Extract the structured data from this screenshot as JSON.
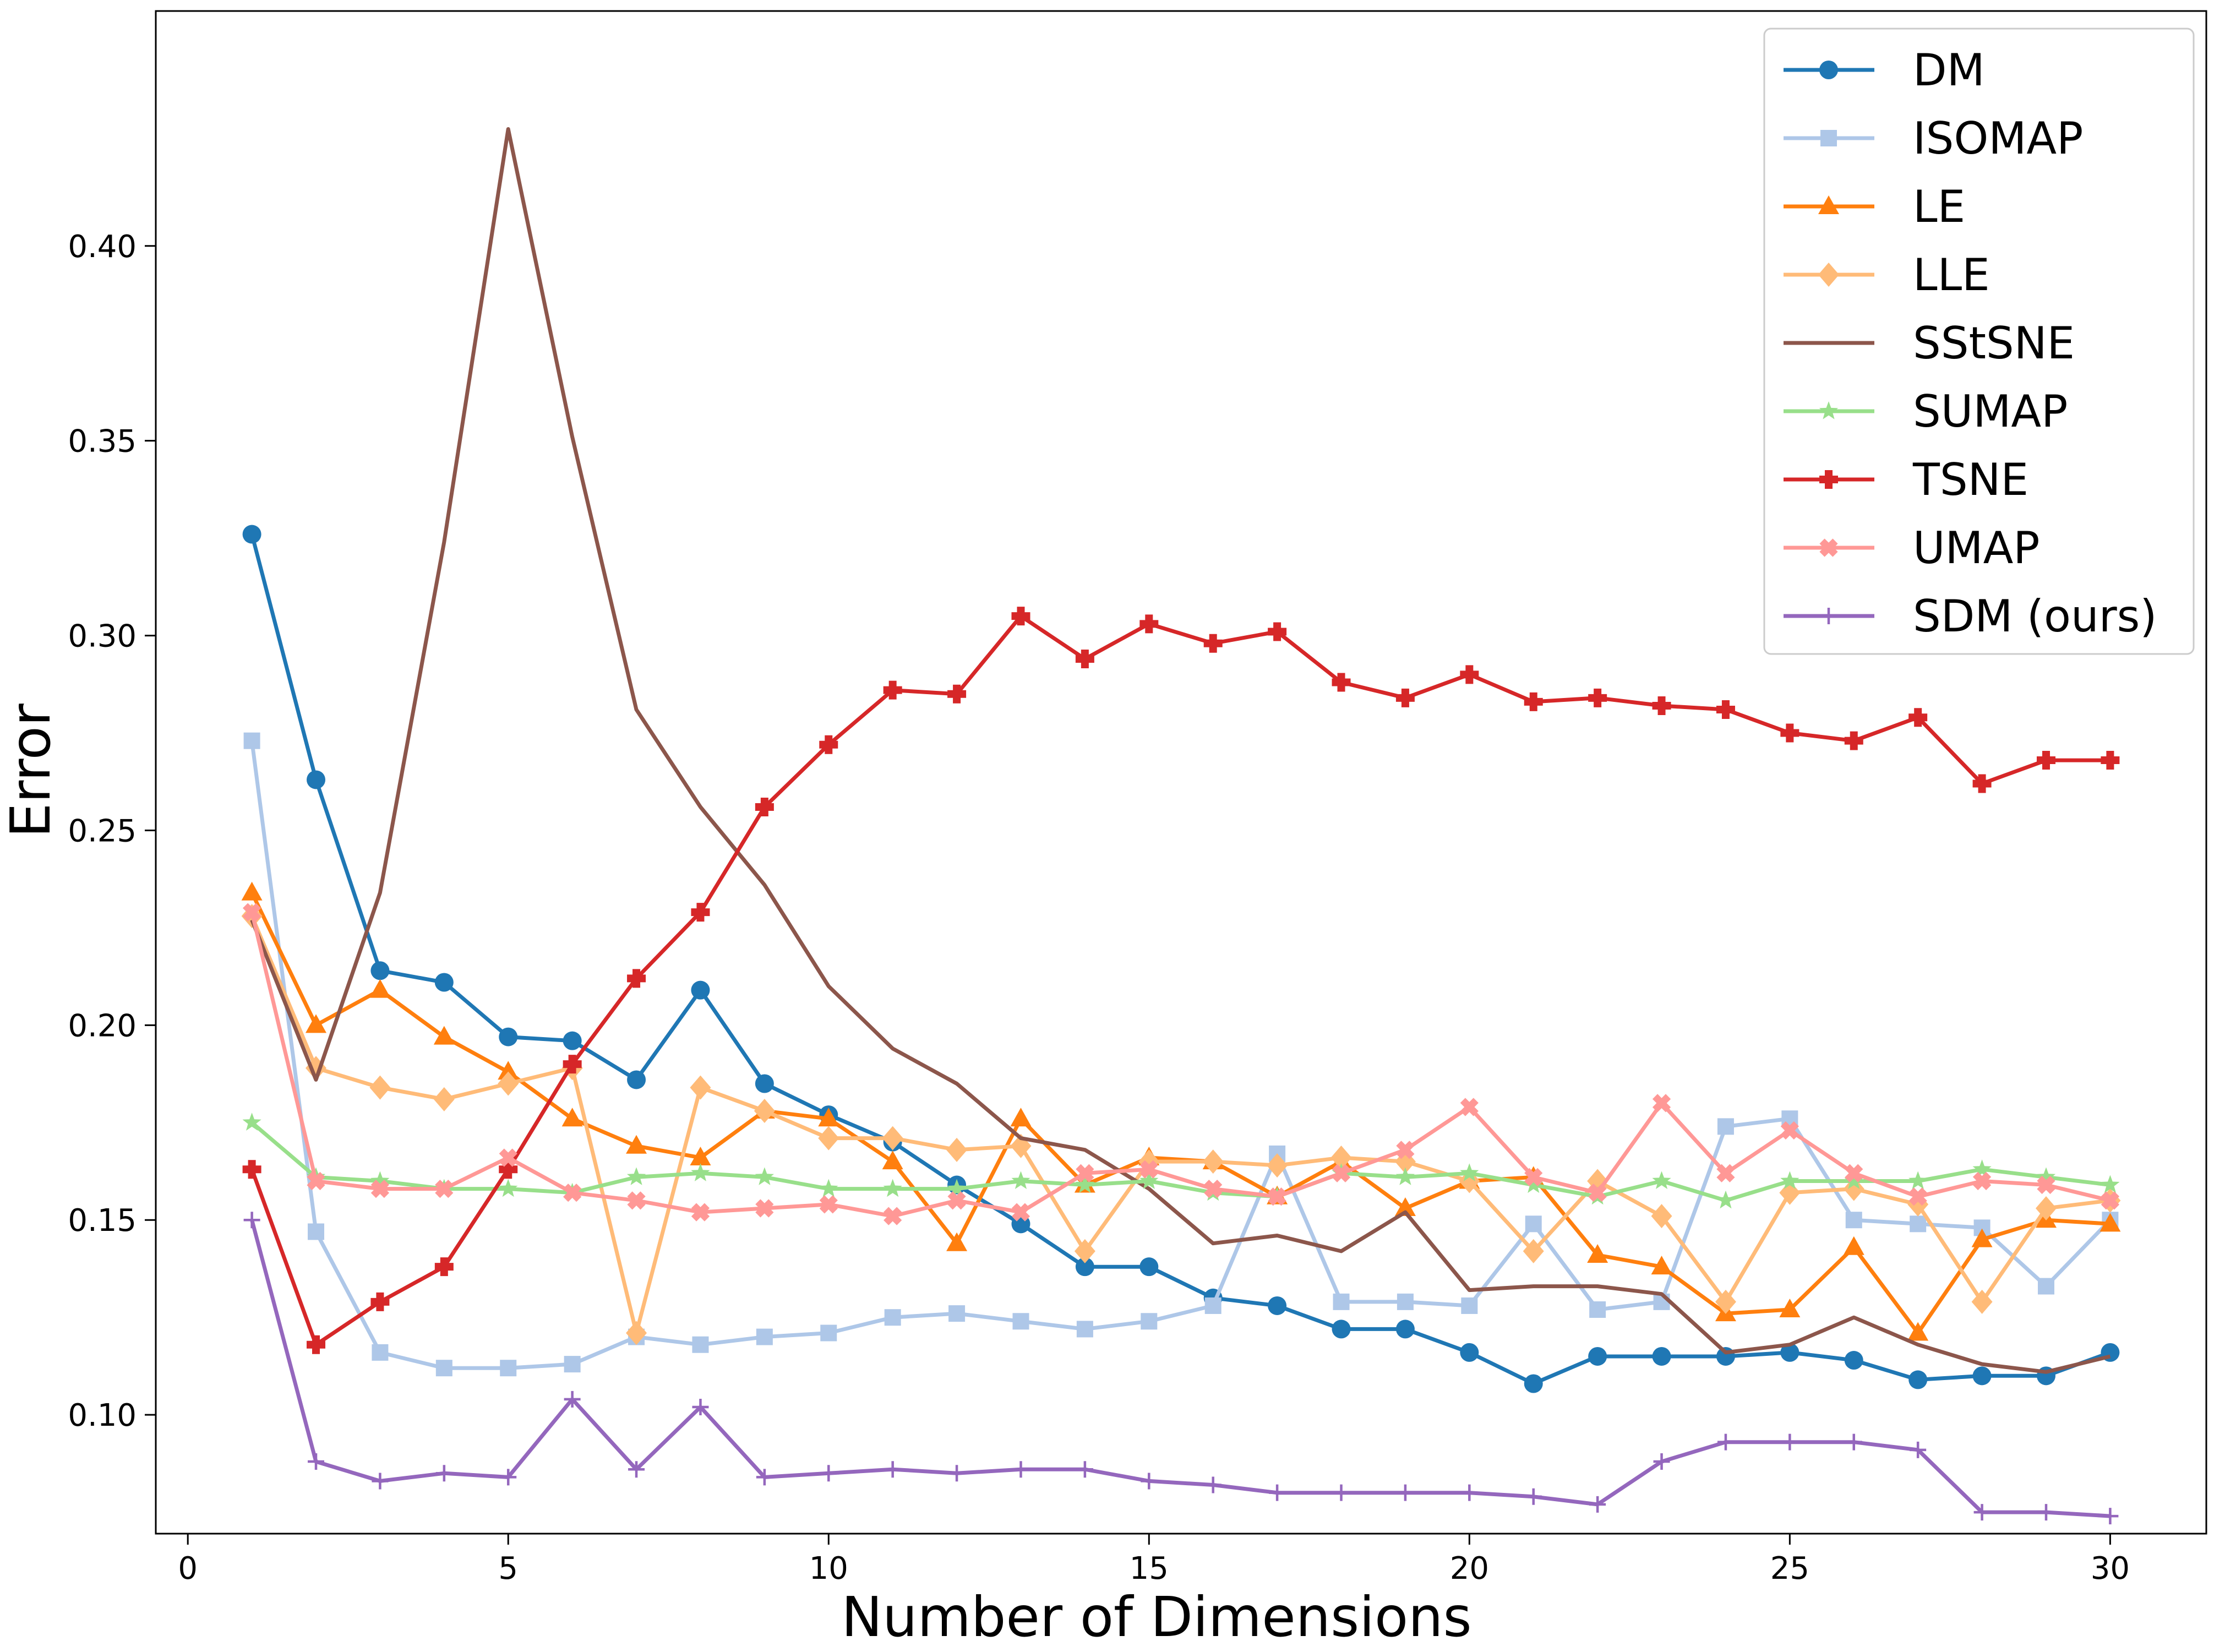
{
  "chart_data": {
    "type": "line",
    "title": "",
    "xlabel": "Number of Dimensions",
    "ylabel": "Error",
    "xlim": [
      -0.5,
      31.5
    ],
    "ylim": [
      0.0695,
      0.4603
    ],
    "x_ticks": [
      0,
      5,
      10,
      15,
      20,
      25,
      30
    ],
    "y_ticks": [
      0.1,
      0.15,
      0.2,
      0.25,
      0.3,
      0.35,
      0.4
    ],
    "y_tick_labels": [
      "0.10",
      "0.15",
      "0.20",
      "0.25",
      "0.30",
      "0.35",
      "0.40"
    ],
    "grid": false,
    "legend_placement": "top-right",
    "x": [
      1,
      2,
      3,
      4,
      5,
      6,
      7,
      8,
      9,
      10,
      11,
      12,
      13,
      14,
      15,
      16,
      17,
      18,
      19,
      20,
      21,
      22,
      23,
      24,
      25,
      26,
      27,
      28,
      29,
      30
    ],
    "series": [
      {
        "name": "DM",
        "color": "#1f77b4",
        "marker": "circle",
        "values": [
          0.326,
          0.263,
          0.214,
          0.211,
          0.197,
          0.196,
          0.186,
          0.209,
          0.185,
          0.177,
          0.17,
          0.159,
          0.149,
          0.138,
          0.138,
          0.13,
          0.128,
          0.122,
          0.122,
          0.116,
          0.108,
          0.115,
          0.115,
          0.115,
          0.116,
          0.114,
          0.109,
          0.11,
          0.11,
          0.116
        ]
      },
      {
        "name": "ISOMAP",
        "color": "#aec7e8",
        "marker": "square",
        "values": [
          0.273,
          0.147,
          0.116,
          0.112,
          0.112,
          0.113,
          0.12,
          0.118,
          0.12,
          0.121,
          0.125,
          0.126,
          0.124,
          0.122,
          0.124,
          0.128,
          0.167,
          0.129,
          0.129,
          0.128,
          0.149,
          0.127,
          0.129,
          0.174,
          0.176,
          0.15,
          0.149,
          0.148,
          0.133,
          0.15
        ]
      },
      {
        "name": "LE",
        "color": "#ff7f0e",
        "marker": "triangle",
        "values": [
          0.234,
          0.2,
          0.209,
          0.197,
          0.188,
          0.176,
          0.169,
          0.166,
          0.178,
          0.176,
          0.165,
          0.144,
          0.176,
          0.159,
          0.166,
          0.165,
          0.156,
          0.165,
          0.153,
          0.16,
          0.161,
          0.141,
          0.138,
          0.126,
          0.127,
          0.143,
          0.121,
          0.145,
          0.15,
          0.149
        ]
      },
      {
        "name": "LLE",
        "color": "#ffbb78",
        "marker": "diamond",
        "values": [
          0.228,
          0.189,
          0.184,
          0.181,
          0.185,
          0.189,
          0.121,
          0.184,
          0.178,
          0.171,
          0.171,
          0.168,
          0.169,
          0.142,
          0.165,
          0.165,
          0.164,
          0.166,
          0.165,
          0.16,
          0.142,
          0.16,
          0.151,
          0.129,
          0.157,
          0.158,
          0.154,
          0.129,
          0.153,
          0.155
        ]
      },
      {
        "name": "SStSNE",
        "color": "#8c564b",
        "marker": "none",
        "values": [
          0.227,
          0.186,
          0.234,
          0.324,
          0.43,
          0.351,
          0.281,
          0.256,
          0.236,
          0.21,
          0.194,
          0.185,
          0.171,
          0.168,
          0.158,
          0.144,
          0.146,
          0.142,
          0.152,
          0.132,
          0.133,
          0.133,
          0.131,
          0.116,
          0.118,
          0.125,
          0.118,
          0.113,
          0.111,
          0.115
        ]
      },
      {
        "name": "SUMAP",
        "color": "#98df8a",
        "marker": "star",
        "values": [
          0.175,
          0.161,
          0.16,
          0.158,
          0.158,
          0.157,
          0.161,
          0.162,
          0.161,
          0.158,
          0.158,
          0.158,
          0.16,
          0.159,
          0.16,
          0.157,
          0.156,
          0.162,
          0.161,
          0.162,
          0.159,
          0.156,
          0.16,
          0.155,
          0.16,
          0.16,
          0.16,
          0.163,
          0.161,
          0.159
        ]
      },
      {
        "name": "TSNE",
        "color": "#d62728",
        "marker": "plus",
        "values": [
          0.163,
          0.118,
          0.129,
          0.138,
          0.163,
          0.19,
          0.212,
          0.229,
          0.256,
          0.272,
          0.286,
          0.285,
          0.305,
          0.294,
          0.303,
          0.298,
          0.301,
          0.288,
          0.284,
          0.29,
          0.283,
          0.284,
          0.282,
          0.281,
          0.275,
          0.273,
          0.279,
          0.262,
          0.268,
          0.268
        ]
      },
      {
        "name": "UMAP",
        "color": "#ff9896",
        "marker": "x",
        "values": [
          0.229,
          0.16,
          0.158,
          0.158,
          0.166,
          0.157,
          0.155,
          0.152,
          0.153,
          0.154,
          0.151,
          0.155,
          0.152,
          0.162,
          0.163,
          0.158,
          0.156,
          0.162,
          0.168,
          0.179,
          0.161,
          0.157,
          0.18,
          0.162,
          0.173,
          0.162,
          0.156,
          0.16,
          0.159,
          0.155
        ]
      },
      {
        "name": "SDM (ours)",
        "color": "#9467bd",
        "marker": "thinplus",
        "values": [
          0.15,
          0.088,
          0.083,
          0.085,
          0.084,
          0.104,
          0.086,
          0.102,
          0.084,
          0.085,
          0.086,
          0.085,
          0.086,
          0.086,
          0.083,
          0.082,
          0.08,
          0.08,
          0.08,
          0.08,
          0.079,
          0.077,
          0.088,
          0.093,
          0.093,
          0.093,
          0.091,
          0.075,
          0.075,
          0.074
        ]
      }
    ]
  }
}
